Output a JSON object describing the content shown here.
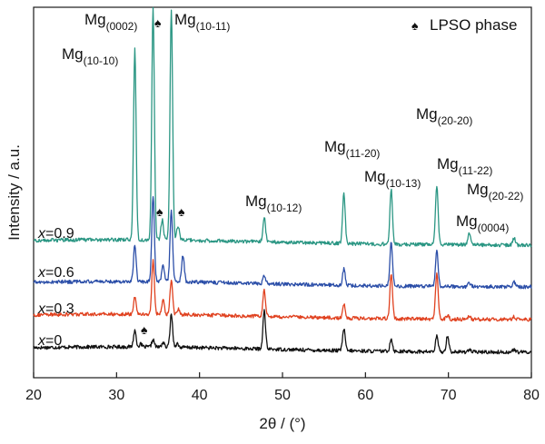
{
  "chart_data": {
    "type": "line",
    "title": "",
    "xlabel": "2θ / (°)",
    "ylabel": "Intensity / a.u.",
    "xlim": [
      20,
      80
    ],
    "x_ticks": [
      "20",
      "30",
      "40",
      "50",
      "60",
      "70",
      "80"
    ],
    "grid": false,
    "legend": {
      "symbol": "♠",
      "text": "LPSO phase",
      "position": "top-right"
    },
    "series": [
      {
        "name": "x=0",
        "label_var": "x",
        "label_val": "=0",
        "color": "#111111",
        "baseline": 0,
        "peaks": [
          [
            32.2,
            18
          ],
          [
            32.9,
            3
          ],
          [
            34.4,
            8
          ],
          [
            35.6,
            5
          ],
          [
            36.6,
            36
          ],
          [
            37.3,
            4
          ],
          [
            47.8,
            42
          ],
          [
            57.4,
            24
          ],
          [
            63.1,
            14
          ],
          [
            68.6,
            17
          ],
          [
            69.9,
            18
          ],
          [
            72.5,
            3
          ],
          [
            77.9,
            3
          ]
        ]
      },
      {
        "name": "x=0.3",
        "label_var": "x",
        "label_val": "=0.3",
        "color": "#e0411f",
        "baseline": 55,
        "peaks": [
          [
            32.2,
            20
          ],
          [
            34.4,
            60
          ],
          [
            35.6,
            16
          ],
          [
            36.6,
            38
          ],
          [
            37.5,
            6
          ],
          [
            47.8,
            28
          ],
          [
            57.4,
            16
          ],
          [
            63.1,
            50
          ],
          [
            68.6,
            50
          ],
          [
            69.9,
            4
          ],
          [
            72.5,
            3
          ],
          [
            77.9,
            3
          ]
        ]
      },
      {
        "name": "x=0.6",
        "label_var": "x",
        "label_val": "=0.6",
        "color": "#2b4ea8",
        "baseline": 85,
        "peaks": [
          [
            32.2,
            40
          ],
          [
            34.4,
            95
          ],
          [
            35.6,
            18
          ],
          [
            36.6,
            80
          ],
          [
            38.0,
            30
          ],
          [
            47.8,
            10
          ],
          [
            57.4,
            18
          ],
          [
            63.1,
            50
          ],
          [
            68.6,
            40
          ],
          [
            72.5,
            4
          ],
          [
            77.9,
            6
          ]
        ]
      },
      {
        "name": "x=0.9",
        "label_var": "x",
        "label_val": "=0.9",
        "color": "#2a9683",
        "baseline": 120,
        "peaks": [
          [
            32.2,
            210
          ],
          [
            34.4,
            255
          ],
          [
            35.5,
            22
          ],
          [
            36.6,
            255
          ],
          [
            37.4,
            16
          ],
          [
            47.8,
            28
          ],
          [
            57.4,
            55
          ],
          [
            63.1,
            60
          ],
          [
            68.6,
            65
          ],
          [
            72.5,
            12
          ],
          [
            77.9,
            8
          ]
        ]
      }
    ],
    "peak_labels": [
      {
        "main": "Mg",
        "sub": "(10-10)"
      },
      {
        "main": "Mg",
        "sub": "(0002)"
      },
      {
        "main": "Mg",
        "sub": "(10-11)"
      },
      {
        "main": "Mg",
        "sub": "(10-12)"
      },
      {
        "main": "Mg",
        "sub": "(11-20)"
      },
      {
        "main": "Mg",
        "sub": "(10-13)"
      },
      {
        "main": "Mg",
        "sub": "(20-20)"
      },
      {
        "main": "Mg",
        "sub": "(11-22)"
      },
      {
        "main": "Mg",
        "sub": "(20-22)"
      },
      {
        "main": "Mg",
        "sub": "(0004)"
      }
    ],
    "lpso_markers": [
      "♠",
      "♠",
      "♠",
      "♠"
    ]
  }
}
